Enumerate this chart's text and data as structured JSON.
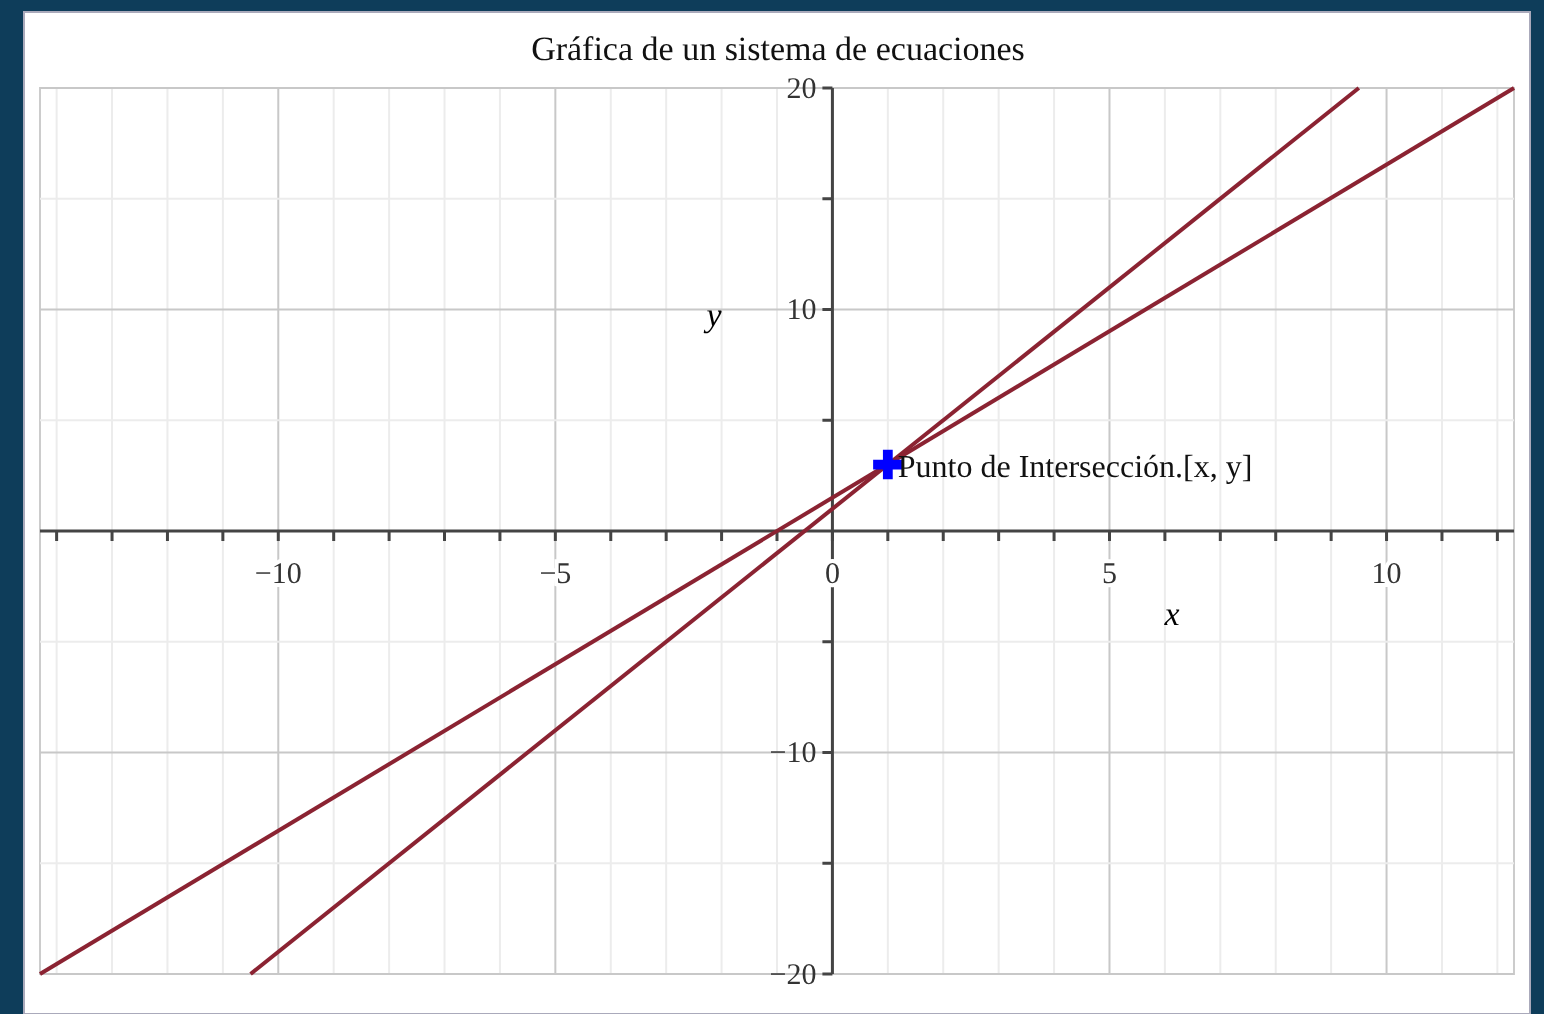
{
  "chart_data": {
    "type": "line",
    "title": "Gráfica de un sistema de ecuaciones",
    "xlabel": "x",
    "ylabel": "y",
    "xlim": [
      -14.3,
      12.3
    ],
    "ylim": [
      -20,
      20
    ],
    "xticks": [
      {
        "value": -14,
        "label": null
      },
      {
        "value": -13,
        "label": null
      },
      {
        "value": -12,
        "label": null
      },
      {
        "value": -11,
        "label": null
      },
      {
        "value": -10,
        "label": "−10"
      },
      {
        "value": -9,
        "label": null
      },
      {
        "value": -8,
        "label": null
      },
      {
        "value": -7,
        "label": null
      },
      {
        "value": -6,
        "label": null
      },
      {
        "value": -5,
        "label": "−5"
      },
      {
        "value": -4,
        "label": null
      },
      {
        "value": -3,
        "label": null
      },
      {
        "value": -2,
        "label": null
      },
      {
        "value": -1,
        "label": null
      },
      0,
      {
        "value": 1,
        "label": null
      },
      {
        "value": 2,
        "label": null
      },
      {
        "value": 3,
        "label": null
      },
      {
        "value": 4,
        "label": null
      },
      5,
      {
        "value": 6,
        "label": null
      },
      {
        "value": 7,
        "label": null
      },
      {
        "value": 8,
        "label": null
      },
      {
        "value": 9,
        "label": null
      },
      10,
      {
        "value": 11,
        "label": null
      },
      {
        "value": 12,
        "label": null
      }
    ],
    "yticks": [
      {
        "value": -20,
        "label": "−20"
      },
      {
        "value": -15,
        "label": null
      },
      {
        "value": -10,
        "label": "−10"
      },
      {
        "value": -5,
        "label": null
      },
      {
        "value": 5,
        "label": null
      },
      10,
      {
        "value": 15,
        "label": null
      },
      20
    ],
    "grid": true,
    "series": [
      {
        "color": "#8b2332",
        "x": [
          -10.5,
          9.5
        ],
        "values": [
          -20,
          20
        ]
      },
      {
        "color": "#8b2332",
        "x": [
          -14.3,
          12.3
        ],
        "values": [
          -20,
          20
        ]
      },
      {
        "type": "scatter",
        "color": "#0000ff",
        "marker": "cross",
        "x": [
          1
        ],
        "values": [
          3
        ]
      }
    ],
    "annotations": [
      {
        "text": "Punto de Intersección.[x, y]",
        "x": 1,
        "y": 3
      }
    ]
  }
}
